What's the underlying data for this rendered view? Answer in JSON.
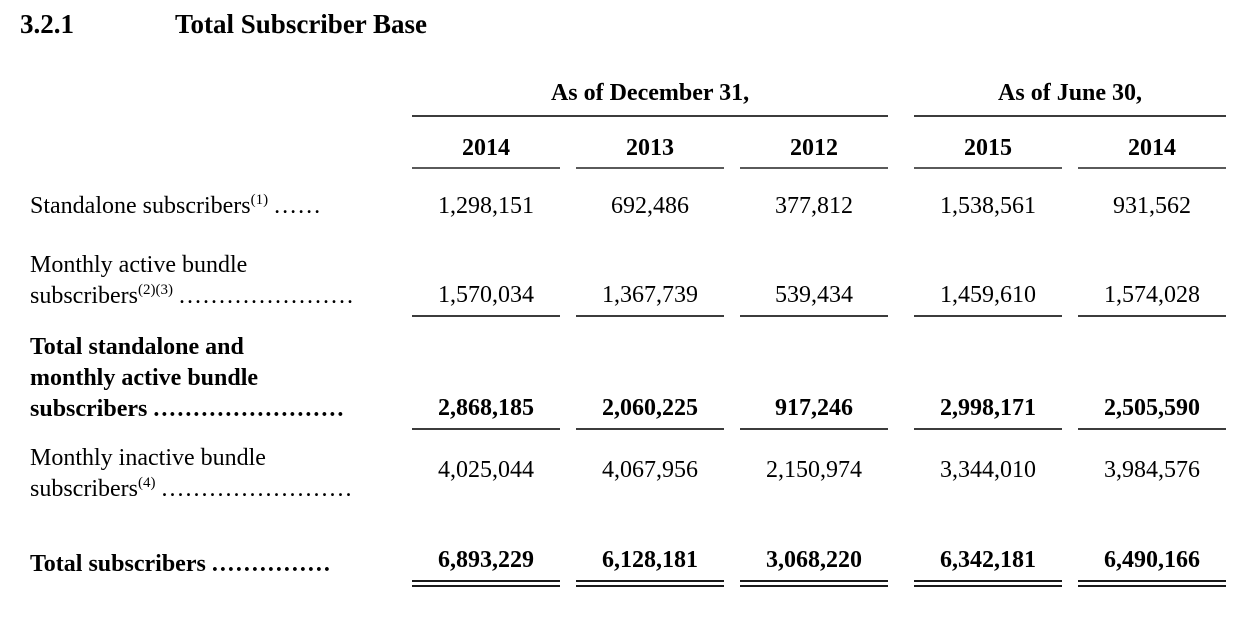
{
  "page": {
    "background": "#ffffff",
    "text_color": "#000000",
    "rule_color": "#3c3c3c",
    "double_rule_color": "#1a1a1a"
  },
  "heading": {
    "number": "3.2.1",
    "title": "Total Subscriber Base"
  },
  "table": {
    "column_groups": [
      {
        "label": "As of December 31,",
        "years": [
          "2014",
          "2013",
          "2012"
        ]
      },
      {
        "label": "As of June 30,",
        "years": [
          "2015",
          "2014"
        ]
      }
    ],
    "rows": [
      {
        "label": "Standalone subscribers",
        "superscript": "(1)",
        "leader": "......",
        "style": "regular",
        "underline": "none",
        "values": [
          "1,298,151",
          "692,486",
          "377,812",
          "1,538,561",
          "931,562"
        ]
      },
      {
        "label_line_1": "Monthly active bundle",
        "label": "subscribers",
        "superscript": "(2)(3)",
        "leader": "......................",
        "style": "regular",
        "underline": "single",
        "values": [
          "1,570,034",
          "1,367,739",
          "539,434",
          "1,459,610",
          "1,574,028"
        ]
      },
      {
        "label_line_1": "Total standalone and",
        "label_line_2": "monthly active bundle",
        "label": "subscribers",
        "leader": "........................",
        "style": "bold",
        "underline": "single",
        "values": [
          "2,868,185",
          "2,060,225",
          "917,246",
          "2,998,171",
          "2,505,590"
        ]
      },
      {
        "label_line_1": "Monthly inactive bundle",
        "label": "subscribers",
        "superscript": "(4)",
        "leader": "........................",
        "style": "regular",
        "underline": "none",
        "values": [
          "4,025,044",
          "4,067,956",
          "2,150,974",
          "3,344,010",
          "3,984,576"
        ]
      },
      {
        "label": "Total subscribers",
        "leader": "...............",
        "style": "bold",
        "underline": "double",
        "values": [
          "6,893,229",
          "6,128,181",
          "3,068,220",
          "6,342,181",
          "6,490,166"
        ]
      }
    ]
  }
}
